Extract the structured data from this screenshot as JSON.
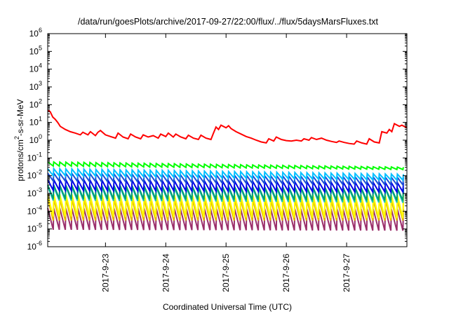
{
  "chart_data": {
    "type": "line",
    "title": "/data/run/goesPlots/archive/2017-09-27/22:00/flux/../flux/5daysMarsFluxes.txt",
    "xlabel": "Coordinated Universal Time (UTC)",
    "ylabel": {
      "prefix": "protons/cm",
      "sup": "2",
      "suffix": "-s-sr-MeV"
    },
    "y_scale": "log",
    "ylim": [
      1e-06,
      1000000.0
    ],
    "xlim": [
      "2017-09-22T01:00",
      "2017-09-28T00:00"
    ],
    "grid": false,
    "legend": "none",
    "y_ticks": [
      {
        "value": 1000000.0,
        "base": "10",
        "exp": "6"
      },
      {
        "value": 100000.0,
        "base": "10",
        "exp": "5"
      },
      {
        "value": 10000.0,
        "base": "10",
        "exp": "4"
      },
      {
        "value": 1000.0,
        "base": "10",
        "exp": "3"
      },
      {
        "value": 100.0,
        "base": "10",
        "exp": "2"
      },
      {
        "value": 10.0,
        "base": "10",
        "exp": "1"
      },
      {
        "value": 1.0,
        "base": "10",
        "exp": "0"
      },
      {
        "value": 0.1,
        "base": "10",
        "exp": "-1"
      },
      {
        "value": 0.01,
        "base": "10",
        "exp": "-2"
      },
      {
        "value": 0.001,
        "base": "10",
        "exp": "-3"
      },
      {
        "value": 0.0001,
        "base": "10",
        "exp": "-4"
      },
      {
        "value": 1e-05,
        "base": "10",
        "exp": "-5"
      },
      {
        "value": 1e-06,
        "base": "10",
        "exp": "-6"
      }
    ],
    "x_ticks": [
      {
        "value": "2017-09-23T00:00",
        "label": "2017-9-23"
      },
      {
        "value": "2017-09-24T00:00",
        "label": "2017-9-24"
      },
      {
        "value": "2017-09-25T00:00",
        "label": "2017-9-25"
      },
      {
        "value": "2017-09-26T00:00",
        "label": "2017-9-26"
      },
      {
        "value": "2017-09-27T00:00",
        "label": "2017-9-27"
      }
    ],
    "series": [
      {
        "color": "#ff0000",
        "pattern": "points",
        "points": [
          [
            "2017-09-22T01:00",
            50
          ],
          [
            "2017-09-22T02:00",
            40
          ],
          [
            "2017-09-22T03:00",
            20
          ],
          [
            "2017-09-22T04:00",
            15
          ],
          [
            "2017-09-22T05:00",
            10
          ],
          [
            "2017-09-22T06:00",
            6
          ],
          [
            "2017-09-22T08:00",
            4
          ],
          [
            "2017-09-22T10:00",
            3
          ],
          [
            "2017-09-22T12:00",
            2.5
          ],
          [
            "2017-09-22T14:00",
            2.0
          ],
          [
            "2017-09-22T15:00",
            2.8
          ],
          [
            "2017-09-22T17:00",
            2.0
          ],
          [
            "2017-09-22T18:00",
            3.0
          ],
          [
            "2017-09-22T20:00",
            1.8
          ],
          [
            "2017-09-22T21:00",
            2.8
          ],
          [
            "2017-09-22T22:00",
            3.5
          ],
          [
            "2017-09-23T00:00",
            2.0
          ],
          [
            "2017-09-23T02:00",
            1.6
          ],
          [
            "2017-09-23T04:00",
            1.3
          ],
          [
            "2017-09-23T05:00",
            2.5
          ],
          [
            "2017-09-23T07:00",
            1.5
          ],
          [
            "2017-09-23T09:00",
            1.2
          ],
          [
            "2017-09-23T10:00",
            2.2
          ],
          [
            "2017-09-23T12:00",
            1.5
          ],
          [
            "2017-09-23T14:00",
            1.2
          ],
          [
            "2017-09-23T15:00",
            2.0
          ],
          [
            "2017-09-23T17:00",
            1.5
          ],
          [
            "2017-09-23T19:00",
            1.8
          ],
          [
            "2017-09-23T21:00",
            1.3
          ],
          [
            "2017-09-23T22:00",
            2.2
          ],
          [
            "2017-09-24T00:00",
            1.6
          ],
          [
            "2017-09-24T01:00",
            2.5
          ],
          [
            "2017-09-24T03:00",
            1.5
          ],
          [
            "2017-09-24T04:00",
            2.2
          ],
          [
            "2017-09-24T06:00",
            1.5
          ],
          [
            "2017-09-24T08:00",
            1.2
          ],
          [
            "2017-09-24T09:00",
            1.9
          ],
          [
            "2017-09-24T11:00",
            1.3
          ],
          [
            "2017-09-24T13:00",
            1.1
          ],
          [
            "2017-09-24T14:00",
            1.9
          ],
          [
            "2017-09-24T16:00",
            1.3
          ],
          [
            "2017-09-24T18:00",
            1.1
          ],
          [
            "2017-09-24T19:00",
            2.5
          ],
          [
            "2017-09-24T20:00",
            5.5
          ],
          [
            "2017-09-24T21:00",
            4.0
          ],
          [
            "2017-09-24T22:00",
            7.0
          ],
          [
            "2017-09-25T00:00",
            5.0
          ],
          [
            "2017-09-25T01:00",
            6.5
          ],
          [
            "2017-09-25T02:00",
            4.5
          ],
          [
            "2017-09-25T04:00",
            3.0
          ],
          [
            "2017-09-25T06:00",
            2.2
          ],
          [
            "2017-09-25T08:00",
            1.6
          ],
          [
            "2017-09-25T10:00",
            1.3
          ],
          [
            "2017-09-25T12:00",
            1.0
          ],
          [
            "2017-09-25T14:00",
            0.8
          ],
          [
            "2017-09-25T16:00",
            0.7
          ],
          [
            "2017-09-25T17:00",
            1.2
          ],
          [
            "2017-09-25T19:00",
            0.9
          ],
          [
            "2017-09-25T20:00",
            1.5
          ],
          [
            "2017-09-25T22:00",
            1.1
          ],
          [
            "2017-09-26T00:00",
            0.95
          ],
          [
            "2017-09-26T02:00",
            0.9
          ],
          [
            "2017-09-26T04:00",
            1.0
          ],
          [
            "2017-09-26T06:00",
            0.9
          ],
          [
            "2017-09-26T07:00",
            1.2
          ],
          [
            "2017-09-26T09:00",
            1.0
          ],
          [
            "2017-09-26T10:00",
            1.4
          ],
          [
            "2017-09-26T12:00",
            1.1
          ],
          [
            "2017-09-26T14:00",
            1.3
          ],
          [
            "2017-09-26T16:00",
            1.0
          ],
          [
            "2017-09-26T18:00",
            0.85
          ],
          [
            "2017-09-26T20:00",
            0.75
          ],
          [
            "2017-09-26T21:00",
            0.9
          ],
          [
            "2017-09-26T23:00",
            0.75
          ],
          [
            "2017-09-27T01:00",
            0.65
          ],
          [
            "2017-09-27T03:00",
            0.6
          ],
          [
            "2017-09-27T04:00",
            0.9
          ],
          [
            "2017-09-27T06:00",
            0.7
          ],
          [
            "2017-09-27T08:00",
            0.6
          ],
          [
            "2017-09-27T09:00",
            1.2
          ],
          [
            "2017-09-27T11:00",
            0.8
          ],
          [
            "2017-09-27T13:00",
            0.7
          ],
          [
            "2017-09-27T14:00",
            3.0
          ],
          [
            "2017-09-27T16:00",
            2.5
          ],
          [
            "2017-09-27T17:00",
            4.0
          ],
          [
            "2017-09-27T18:00",
            3.0
          ],
          [
            "2017-09-27T19:00",
            8.5
          ],
          [
            "2017-09-27T21:00",
            6.0
          ],
          [
            "2017-09-27T22:00",
            7.0
          ],
          [
            "2017-09-28T00:00",
            5.0
          ]
        ]
      },
      {
        "color": "#00ff00",
        "pattern": "sawtooth",
        "period_hours": 2.4,
        "high": 0.06,
        "low": 0.035,
        "end_high": 0.03,
        "end_low": 0.022
      },
      {
        "color": "#00bfff",
        "pattern": "sawtooth",
        "period_hours": 2.4,
        "high": 0.025,
        "low": 0.01,
        "end_high": 0.012,
        "end_low": 0.0055
      },
      {
        "color": "#1a4fd6",
        "pattern": "sawtooth",
        "period_hours": 2.4,
        "high": 0.014,
        "low": 0.005,
        "end_high": 0.008,
        "end_low": 0.003
      },
      {
        "color": "#0000e6",
        "pattern": "sawtooth",
        "period_hours": 2.4,
        "high": 0.006,
        "low": 0.0015,
        "end_high": 0.004,
        "end_low": 0.0012
      },
      {
        "color": "#009e73",
        "pattern": "sawtooth",
        "period_hours": 2.4,
        "high": 0.003,
        "low": 0.0005,
        "end_high": 0.002,
        "end_low": 0.0004
      },
      {
        "color": "#19c6b3",
        "pattern": "sawtooth",
        "period_hours": 2.4,
        "high": 0.0025,
        "low": 0.0004,
        "end_high": 0.0018,
        "end_low": 0.0003
      },
      {
        "color": "#ffff00",
        "pattern": "sawtooth",
        "period_hours": 2.4,
        "high": 0.0009,
        "low": 5e-05,
        "end_high": 0.0008,
        "end_low": 4e-05
      },
      {
        "color": "#e6b800",
        "pattern": "sawtooth",
        "period_hours": 2.4,
        "high": 0.0005,
        "low": 3e-05,
        "end_high": 0.0004,
        "end_low": 3e-05
      },
      {
        "color": "#9b2f6b",
        "pattern": "sawtooth",
        "period_hours": 2.4,
        "high": 0.00015,
        "low": 9e-06,
        "end_high": 0.00013,
        "end_low": 8e-06
      }
    ]
  }
}
